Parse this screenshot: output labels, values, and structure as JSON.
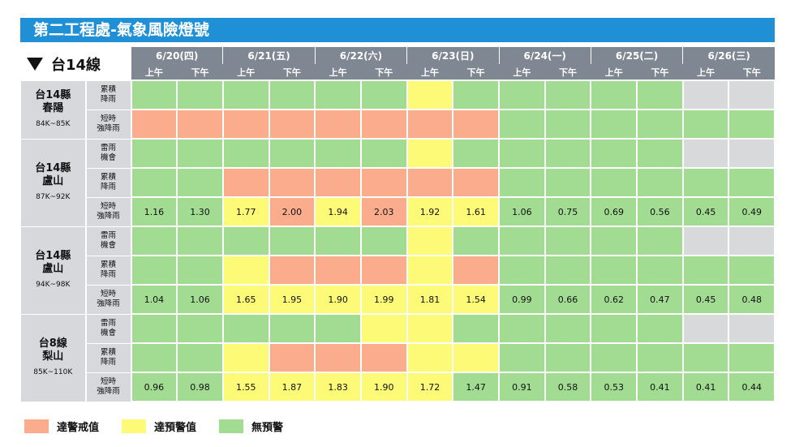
{
  "title": "第二工程處-氣象風險燈號",
  "route_label": "台14線",
  "colors": {
    "red": "#fbac8c",
    "yellow": "#fcfa77",
    "green": "#a2dc92",
    "gray": "#d7d9da"
  },
  "dates": [
    "6/20(四)",
    "6/21(五)",
    "6/22(六)",
    "6/23(日)",
    "6/24(一)",
    "6/25(二)",
    "6/26(三)"
  ],
  "halves": [
    "上午",
    "下午"
  ],
  "groups": [
    {
      "name": "台14縣\n春陽",
      "km": "84K~85K",
      "rows": [
        {
          "type": "累積\n降雨",
          "cells": [
            "G",
            "G",
            "G",
            "G",
            "G",
            "G",
            "Y",
            "G",
            "G",
            "G",
            "G",
            "G",
            "X",
            "X"
          ]
        },
        {
          "type": "短時\n強降雨",
          "cells": [
            "R",
            "R",
            "R",
            "R",
            "R",
            "R",
            "R",
            "R",
            "G",
            "G",
            "G",
            "G",
            "G",
            "G"
          ]
        }
      ]
    },
    {
      "name": "台14縣\n盧山",
      "km": "87K~92K",
      "rows": [
        {
          "type": "雷雨\n機會",
          "cells": [
            "G",
            "G",
            "G",
            "G",
            "G",
            "G",
            "Y",
            "G",
            "G",
            "G",
            "G",
            "G",
            "X",
            "X"
          ]
        },
        {
          "type": "累積\n降雨",
          "cells": [
            "G",
            "G",
            "R",
            "R",
            "R",
            "R",
            "R",
            "R",
            "G",
            "G",
            "G",
            "G",
            "G",
            "G"
          ]
        },
        {
          "type": "短時\n強降雨",
          "cells": [
            "G",
            "G",
            "Y",
            "R",
            "Y",
            "R",
            "Y",
            "Y",
            "G",
            "G",
            "G",
            "G",
            "G",
            "G"
          ],
          "values": [
            "1.16",
            "1.30",
            "1.77",
            "2.00",
            "1.94",
            "2.03",
            "1.92",
            "1.61",
            "1.06",
            "0.75",
            "0.69",
            "0.56",
            "0.45",
            "0.49"
          ]
        }
      ]
    },
    {
      "name": "台14縣\n盧山",
      "km": "94K~98K",
      "rows": [
        {
          "type": "雷雨\n機會",
          "cells": [
            "G",
            "G",
            "G",
            "G",
            "G",
            "G",
            "Y",
            "G",
            "G",
            "G",
            "G",
            "G",
            "X",
            "X"
          ]
        },
        {
          "type": "累積\n降雨",
          "cells": [
            "G",
            "G",
            "Y",
            "R",
            "R",
            "R",
            "Y",
            "R",
            "G",
            "G",
            "G",
            "G",
            "G",
            "G"
          ]
        },
        {
          "type": "短時\n強降雨",
          "cells": [
            "G",
            "G",
            "Y",
            "Y",
            "Y",
            "Y",
            "Y",
            "Y",
            "G",
            "G",
            "G",
            "G",
            "G",
            "G"
          ],
          "values": [
            "1.04",
            "1.06",
            "1.65",
            "1.95",
            "1.90",
            "1.99",
            "1.81",
            "1.54",
            "0.99",
            "0.66",
            "0.62",
            "0.47",
            "0.45",
            "0.48"
          ]
        }
      ]
    },
    {
      "name": "台8線\n梨山",
      "km": "85K~110K",
      "rows": [
        {
          "type": "雷雨\n機會",
          "cells": [
            "G",
            "G",
            "G",
            "G",
            "G",
            "Y",
            "Y",
            "G",
            "G",
            "G",
            "G",
            "G",
            "X",
            "X"
          ]
        },
        {
          "type": "累積\n降雨",
          "cells": [
            "G",
            "G",
            "Y",
            "R",
            "R",
            "R",
            "Y",
            "Y",
            "G",
            "G",
            "G",
            "G",
            "G",
            "G"
          ]
        },
        {
          "type": "短時\n強降雨",
          "cells": [
            "G",
            "G",
            "Y",
            "Y",
            "Y",
            "Y",
            "Y",
            "G",
            "G",
            "G",
            "G",
            "G",
            "G",
            "G"
          ],
          "values": [
            "0.96",
            "0.98",
            "1.55",
            "1.87",
            "1.83",
            "1.90",
            "1.72",
            "1.47",
            "0.91",
            "0.58",
            "0.53",
            "0.41",
            "0.41",
            "0.44"
          ]
        }
      ]
    }
  ],
  "legend": [
    {
      "label": "達警戒值",
      "color": "#fbac8c"
    },
    {
      "label": "達預警值",
      "color": "#fcfa77"
    },
    {
      "label": "無預警",
      "color": "#a2dc92"
    }
  ]
}
